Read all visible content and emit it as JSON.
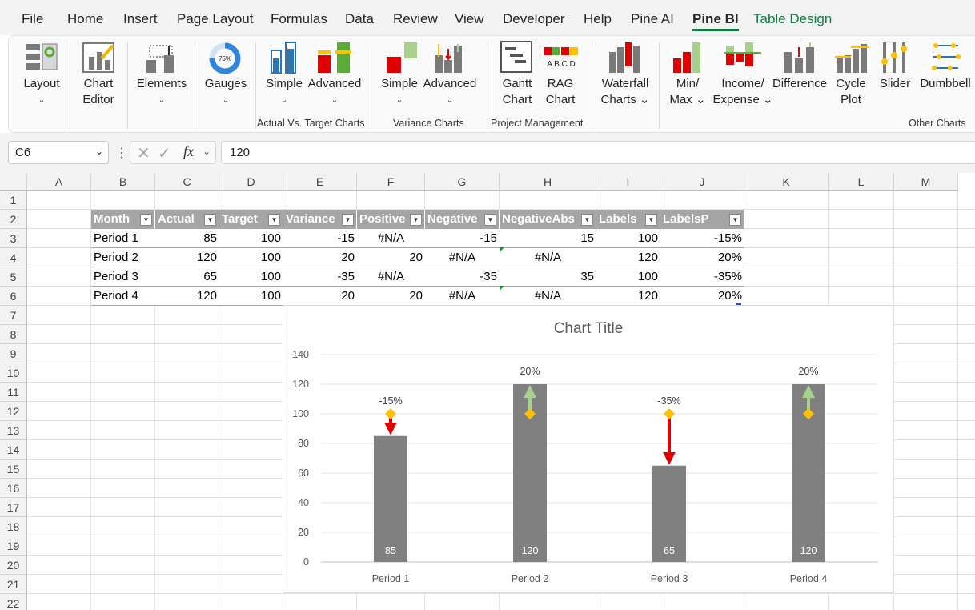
{
  "menu": {
    "items": [
      "File",
      "Home",
      "Insert",
      "Page Layout",
      "Formulas",
      "Data",
      "Review",
      "View",
      "Developer",
      "Help",
      "Pine AI",
      "Pine BI",
      "Table Design"
    ],
    "active": "Pine BI"
  },
  "ribbon": {
    "buttons": [
      {
        "label1": "Layout",
        "label2": "⌄",
        "icon": "layout-icon"
      },
      {
        "label1": "Chart",
        "label2": "Editor",
        "icon": "chart-editor-icon"
      },
      {
        "label1": "Elements",
        "label2": "⌄",
        "icon": "elements-icon"
      },
      {
        "label1": "Gauges",
        "label2": "⌄",
        "icon": "gauge-icon",
        "gauge_text": "75%"
      },
      {
        "label1": "Simple",
        "label2": "⌄",
        "icon": "simple-target-icon"
      },
      {
        "label1": "Advanced",
        "label2": "⌄",
        "icon": "advanced-target-icon"
      },
      {
        "label1": "Simple",
        "label2": "⌄",
        "icon": "simple-variance-icon"
      },
      {
        "label1": "Advanced",
        "label2": "⌄",
        "icon": "advanced-variance-icon"
      },
      {
        "label1": "Gantt",
        "label2": "Chart",
        "icon": "gantt-icon"
      },
      {
        "label1": "RAG",
        "label2": "Chart",
        "icon": "rag-icon",
        "rag_text": "A B C D"
      },
      {
        "label1": "Waterfall",
        "label2": "Charts ⌄",
        "icon": "waterfall-icon"
      },
      {
        "label1": "Min/",
        "label2": "Max ⌄",
        "icon": "minmax-icon"
      },
      {
        "label1": "Income/",
        "label2": "Expense ⌄",
        "icon": "income-expense-icon"
      },
      {
        "label1": "Difference",
        "label2": "",
        "icon": "difference-icon"
      },
      {
        "label1": "Cycle",
        "label2": "Plot",
        "icon": "cycle-plot-icon"
      },
      {
        "label1": "Slider",
        "label2": "",
        "icon": "slider-icon"
      },
      {
        "label1": "Dumbbell",
        "label2": "",
        "icon": "dumbbell-icon"
      }
    ],
    "groups": [
      "Actual Vs. Target Charts",
      "Variance Charts",
      "Project Management",
      "Other Charts"
    ]
  },
  "formula_bar": {
    "name_box": "C6",
    "fx": "fx",
    "value": "120"
  },
  "columns": [
    "A",
    "B",
    "C",
    "D",
    "E",
    "F",
    "G",
    "H",
    "I",
    "J",
    "K",
    "L",
    "M"
  ],
  "rows": [
    "1",
    "2",
    "3",
    "4",
    "5",
    "6",
    "7",
    "8",
    "9",
    "10",
    "11",
    "12",
    "13",
    "14",
    "15",
    "16",
    "17",
    "18",
    "19",
    "20",
    "21",
    "22"
  ],
  "table": {
    "headers": [
      "Month",
      "Actual",
      "Target",
      "Variance",
      "Positive",
      "Negative",
      "NegativeAbs",
      "Labels",
      "LabelsP"
    ],
    "rows": [
      [
        "Period 1",
        "85",
        "100",
        "-15",
        "#N/A",
        "-15",
        "15",
        "100",
        "-15%"
      ],
      [
        "Period 2",
        "120",
        "100",
        "20",
        "20",
        "#N/A",
        "#N/A",
        "120",
        "20%"
      ],
      [
        "Period 3",
        "65",
        "100",
        "-35",
        "#N/A",
        "-35",
        "35",
        "100",
        "-35%"
      ],
      [
        "Period 4",
        "120",
        "100",
        "20",
        "20",
        "#N/A",
        "#N/A",
        "120",
        "20%"
      ]
    ]
  },
  "colors": {
    "bar": "#808080",
    "target": "#ffc000",
    "negative_arrow": "#e00000",
    "positive_arrow": "#a9d18e",
    "header": "#a5a5a5",
    "accent": "#107c41"
  },
  "chart_data": {
    "type": "bar",
    "title": "Chart Title",
    "categories": [
      "Period 1",
      "Period 2",
      "Period 3",
      "Period 4"
    ],
    "series": [
      {
        "values": [
          85,
          120,
          65,
          120
        ]
      },
      {
        "values": [
          100,
          100,
          100,
          100
        ]
      }
    ],
    "variance_labels": [
      "-15%",
      "20%",
      "-35%",
      "20%"
    ],
    "bar_labels": [
      "85",
      "120",
      "65",
      "120"
    ],
    "yticks": [
      "0",
      "20",
      "40",
      "60",
      "80",
      "100",
      "120",
      "140"
    ],
    "ylim": [
      0,
      140
    ],
    "grid": true
  }
}
